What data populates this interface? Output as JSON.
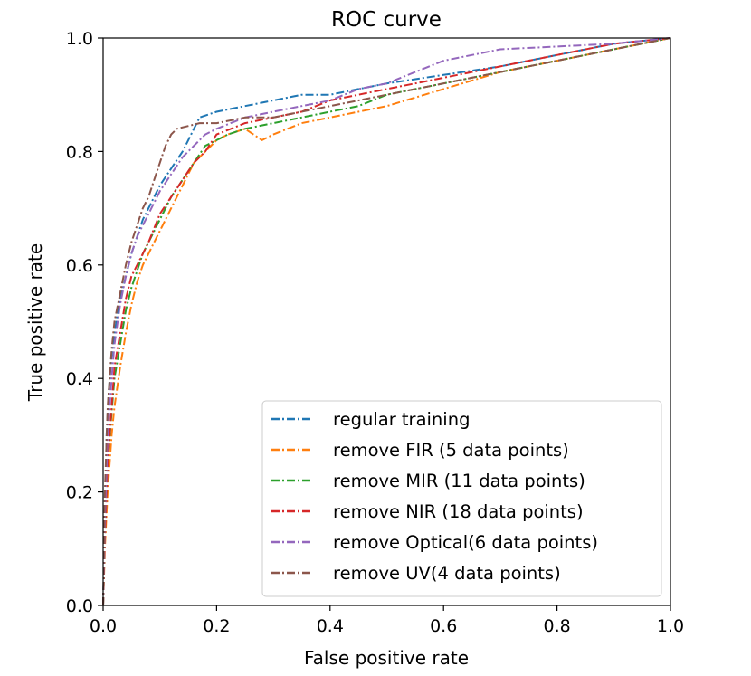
{
  "chart_data": {
    "type": "line",
    "title": "ROC curve",
    "xlabel": "False positive rate",
    "ylabel": "True positive rate",
    "xlim": [
      0.0,
      1.0
    ],
    "ylim": [
      0.0,
      1.0
    ],
    "xticks": [
      "0.0",
      "0.2",
      "0.4",
      "0.6",
      "0.8",
      "1.0"
    ],
    "yticks": [
      "0.0",
      "0.2",
      "0.4",
      "0.6",
      "0.8",
      "1.0"
    ],
    "legend_position": "lower-right",
    "series": [
      {
        "name": "regular training",
        "color": "#1f77b4",
        "x": [
          0.0,
          0.003,
          0.006,
          0.01,
          0.015,
          0.02,
          0.03,
          0.04,
          0.05,
          0.06,
          0.07,
          0.08,
          0.09,
          0.1,
          0.12,
          0.14,
          0.15,
          0.16,
          0.17,
          0.2,
          0.25,
          0.3,
          0.35,
          0.4,
          0.45,
          0.5,
          0.6,
          0.7,
          0.8,
          0.9,
          1.0
        ],
        "y": [
          0.0,
          0.15,
          0.3,
          0.38,
          0.44,
          0.48,
          0.54,
          0.58,
          0.62,
          0.65,
          0.68,
          0.7,
          0.72,
          0.74,
          0.77,
          0.8,
          0.82,
          0.84,
          0.86,
          0.87,
          0.88,
          0.89,
          0.9,
          0.9,
          0.91,
          0.92,
          0.935,
          0.95,
          0.97,
          0.99,
          1.0
        ]
      },
      {
        "name": "remove FIR (5 data points)",
        "color": "#ff7f0e",
        "x": [
          0.0,
          0.003,
          0.008,
          0.015,
          0.02,
          0.03,
          0.04,
          0.05,
          0.06,
          0.07,
          0.08,
          0.09,
          0.1,
          0.12,
          0.14,
          0.16,
          0.18,
          0.2,
          0.22,
          0.25,
          0.28,
          0.3,
          0.35,
          0.4,
          0.45,
          0.5,
          0.6,
          0.7,
          0.8,
          0.9,
          1.0
        ],
        "y": [
          0.0,
          0.1,
          0.2,
          0.3,
          0.35,
          0.42,
          0.48,
          0.53,
          0.57,
          0.6,
          0.62,
          0.64,
          0.66,
          0.7,
          0.74,
          0.78,
          0.8,
          0.82,
          0.83,
          0.84,
          0.82,
          0.83,
          0.85,
          0.86,
          0.87,
          0.88,
          0.91,
          0.94,
          0.96,
          0.98,
          1.0
        ]
      },
      {
        "name": "remove MIR (11 data points)",
        "color": "#2ca02c",
        "x": [
          0.0,
          0.003,
          0.008,
          0.015,
          0.02,
          0.03,
          0.04,
          0.05,
          0.06,
          0.07,
          0.08,
          0.1,
          0.12,
          0.14,
          0.16,
          0.18,
          0.2,
          0.22,
          0.25,
          0.3,
          0.35,
          0.4,
          0.45,
          0.5,
          0.6,
          0.7,
          0.8,
          0.9,
          1.0
        ],
        "y": [
          0.0,
          0.12,
          0.25,
          0.34,
          0.4,
          0.46,
          0.52,
          0.56,
          0.59,
          0.62,
          0.64,
          0.68,
          0.72,
          0.75,
          0.78,
          0.81,
          0.82,
          0.83,
          0.84,
          0.85,
          0.86,
          0.87,
          0.88,
          0.9,
          0.92,
          0.94,
          0.96,
          0.98,
          1.0
        ]
      },
      {
        "name": "remove NIR (18 data points)",
        "color": "#d62728",
        "x": [
          0.0,
          0.003,
          0.008,
          0.015,
          0.02,
          0.03,
          0.04,
          0.05,
          0.06,
          0.07,
          0.08,
          0.1,
          0.12,
          0.14,
          0.16,
          0.18,
          0.2,
          0.25,
          0.3,
          0.35,
          0.4,
          0.45,
          0.5,
          0.55,
          0.6,
          0.7,
          0.8,
          0.9,
          1.0
        ],
        "y": [
          0.0,
          0.12,
          0.25,
          0.35,
          0.42,
          0.48,
          0.54,
          0.58,
          0.6,
          0.62,
          0.64,
          0.69,
          0.72,
          0.75,
          0.78,
          0.8,
          0.83,
          0.85,
          0.86,
          0.87,
          0.89,
          0.9,
          0.91,
          0.92,
          0.93,
          0.95,
          0.97,
          0.99,
          1.0
        ]
      },
      {
        "name": "remove Optical(6 data points)",
        "color": "#9467bd",
        "x": [
          0.0,
          0.003,
          0.008,
          0.015,
          0.02,
          0.03,
          0.04,
          0.05,
          0.06,
          0.07,
          0.08,
          0.1,
          0.12,
          0.14,
          0.16,
          0.18,
          0.2,
          0.25,
          0.3,
          0.35,
          0.4,
          0.45,
          0.5,
          0.55,
          0.6,
          0.7,
          0.8,
          0.9,
          0.95,
          1.0
        ],
        "y": [
          0.0,
          0.15,
          0.3,
          0.4,
          0.46,
          0.53,
          0.58,
          0.62,
          0.65,
          0.67,
          0.69,
          0.73,
          0.76,
          0.79,
          0.81,
          0.83,
          0.84,
          0.86,
          0.87,
          0.88,
          0.89,
          0.91,
          0.92,
          0.94,
          0.96,
          0.98,
          0.985,
          0.99,
          0.995,
          1.0
        ]
      },
      {
        "name": "remove UV(4 data points)",
        "color": "#8c564b",
        "x": [
          0.0,
          0.003,
          0.008,
          0.015,
          0.02,
          0.03,
          0.04,
          0.05,
          0.06,
          0.07,
          0.08,
          0.09,
          0.1,
          0.11,
          0.12,
          0.13,
          0.15,
          0.17,
          0.2,
          0.25,
          0.3,
          0.35,
          0.4,
          0.45,
          0.5,
          0.6,
          0.7,
          0.8,
          0.9,
          1.0
        ],
        "y": [
          0.0,
          0.2,
          0.35,
          0.45,
          0.5,
          0.55,
          0.6,
          0.64,
          0.67,
          0.7,
          0.72,
          0.75,
          0.78,
          0.81,
          0.83,
          0.84,
          0.845,
          0.85,
          0.85,
          0.86,
          0.86,
          0.87,
          0.88,
          0.89,
          0.9,
          0.92,
          0.94,
          0.96,
          0.98,
          1.0
        ]
      }
    ]
  }
}
